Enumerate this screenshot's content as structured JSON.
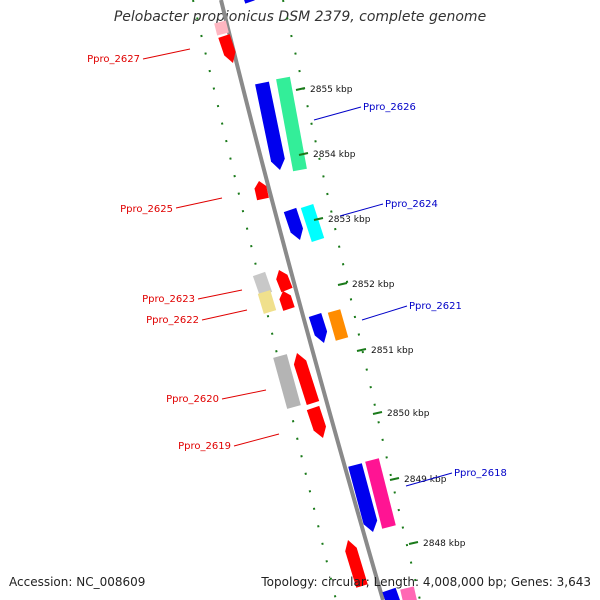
{
  "title": "Pelobacter propionicus DSM 2379, complete genome",
  "footer": {
    "accession": "Accession: NC_008609",
    "summary": "Topology: circular; Length: 4,008,000 bp; Genes: 3,643"
  },
  "colors": {
    "backbone": "#8a8a8a",
    "ruler": "#1a7a1a",
    "label_minus": "#e00000",
    "label_plus": "#0000c8"
  },
  "scale": {
    "unit": "kbp",
    "ticks": [
      {
        "kbp": 2855,
        "label": "2855 kbp"
      },
      {
        "kbp": 2854,
        "label": "2854 kbp"
      },
      {
        "kbp": 2853,
        "label": "2853 kbp"
      },
      {
        "kbp": 2852,
        "label": "2852 kbp"
      },
      {
        "kbp": 2851,
        "label": "2851 kbp"
      },
      {
        "kbp": 2850,
        "label": "2850 kbp"
      },
      {
        "kbp": 2849,
        "label": "2849 kbp"
      },
      {
        "kbp": 2848,
        "label": "2848 kbp"
      }
    ]
  },
  "labels": [
    {
      "text": "Ppro_2627",
      "strand": "minus"
    },
    {
      "text": "Ppro_2626",
      "strand": "plus"
    },
    {
      "text": "Ppro_2625",
      "strand": "minus"
    },
    {
      "text": "Ppro_2624",
      "strand": "plus"
    },
    {
      "text": "Ppro_2623",
      "strand": "minus"
    },
    {
      "text": "Ppro_2622",
      "strand": "minus"
    },
    {
      "text": "Ppro_2621",
      "strand": "plus"
    },
    {
      "text": "Ppro_2620",
      "strand": "minus"
    },
    {
      "text": "Ppro_2619",
      "strand": "minus"
    },
    {
      "text": "Ppro_2618",
      "strand": "plus"
    }
  ],
  "features": [
    {
      "strand": "plus",
      "track": "cds",
      "color": "#0000ee"
    },
    {
      "strand": "minus",
      "track": "cds",
      "color": "#ff0000"
    },
    {
      "strand": "minus",
      "track": "gene",
      "color": "#ffb6c1"
    },
    {
      "strand": "plus",
      "track": "cds",
      "color": "#0000ee"
    },
    {
      "strand": "plus",
      "track": "gene",
      "color": "#33ee99"
    },
    {
      "strand": "minus",
      "track": "cds",
      "color": "#ff0000"
    },
    {
      "strand": "plus",
      "track": "cds",
      "color": "#0000ee"
    },
    {
      "strand": "plus",
      "track": "gene",
      "color": "#00ffff"
    },
    {
      "strand": "minus",
      "track": "cds",
      "color": "#ff0000"
    },
    {
      "strand": "minus",
      "track": "gene",
      "color": "#c8c8c8"
    },
    {
      "strand": "minus",
      "track": "cds",
      "color": "#ff0000"
    },
    {
      "strand": "minus",
      "track": "gene",
      "color": "#f0e08c"
    },
    {
      "strand": "plus",
      "track": "cds",
      "color": "#0000ee"
    },
    {
      "strand": "plus",
      "track": "gene",
      "color": "#ff8c00"
    },
    {
      "strand": "minus",
      "track": "cds",
      "color": "#ff0000"
    },
    {
      "strand": "minus",
      "track": "gene",
      "color": "#b4b4b4"
    },
    {
      "strand": "minus",
      "track": "cds",
      "color": "#ff0000"
    },
    {
      "strand": "plus",
      "track": "cds",
      "color": "#0000ee"
    },
    {
      "strand": "plus",
      "track": "gene",
      "color": "#ff1493"
    },
    {
      "strand": "minus",
      "track": "cds",
      "color": "#ff0000"
    },
    {
      "strand": "plus",
      "track": "cds",
      "color": "#0000ee"
    },
    {
      "strand": "plus",
      "track": "gene",
      "color": "#ff69b4"
    }
  ]
}
